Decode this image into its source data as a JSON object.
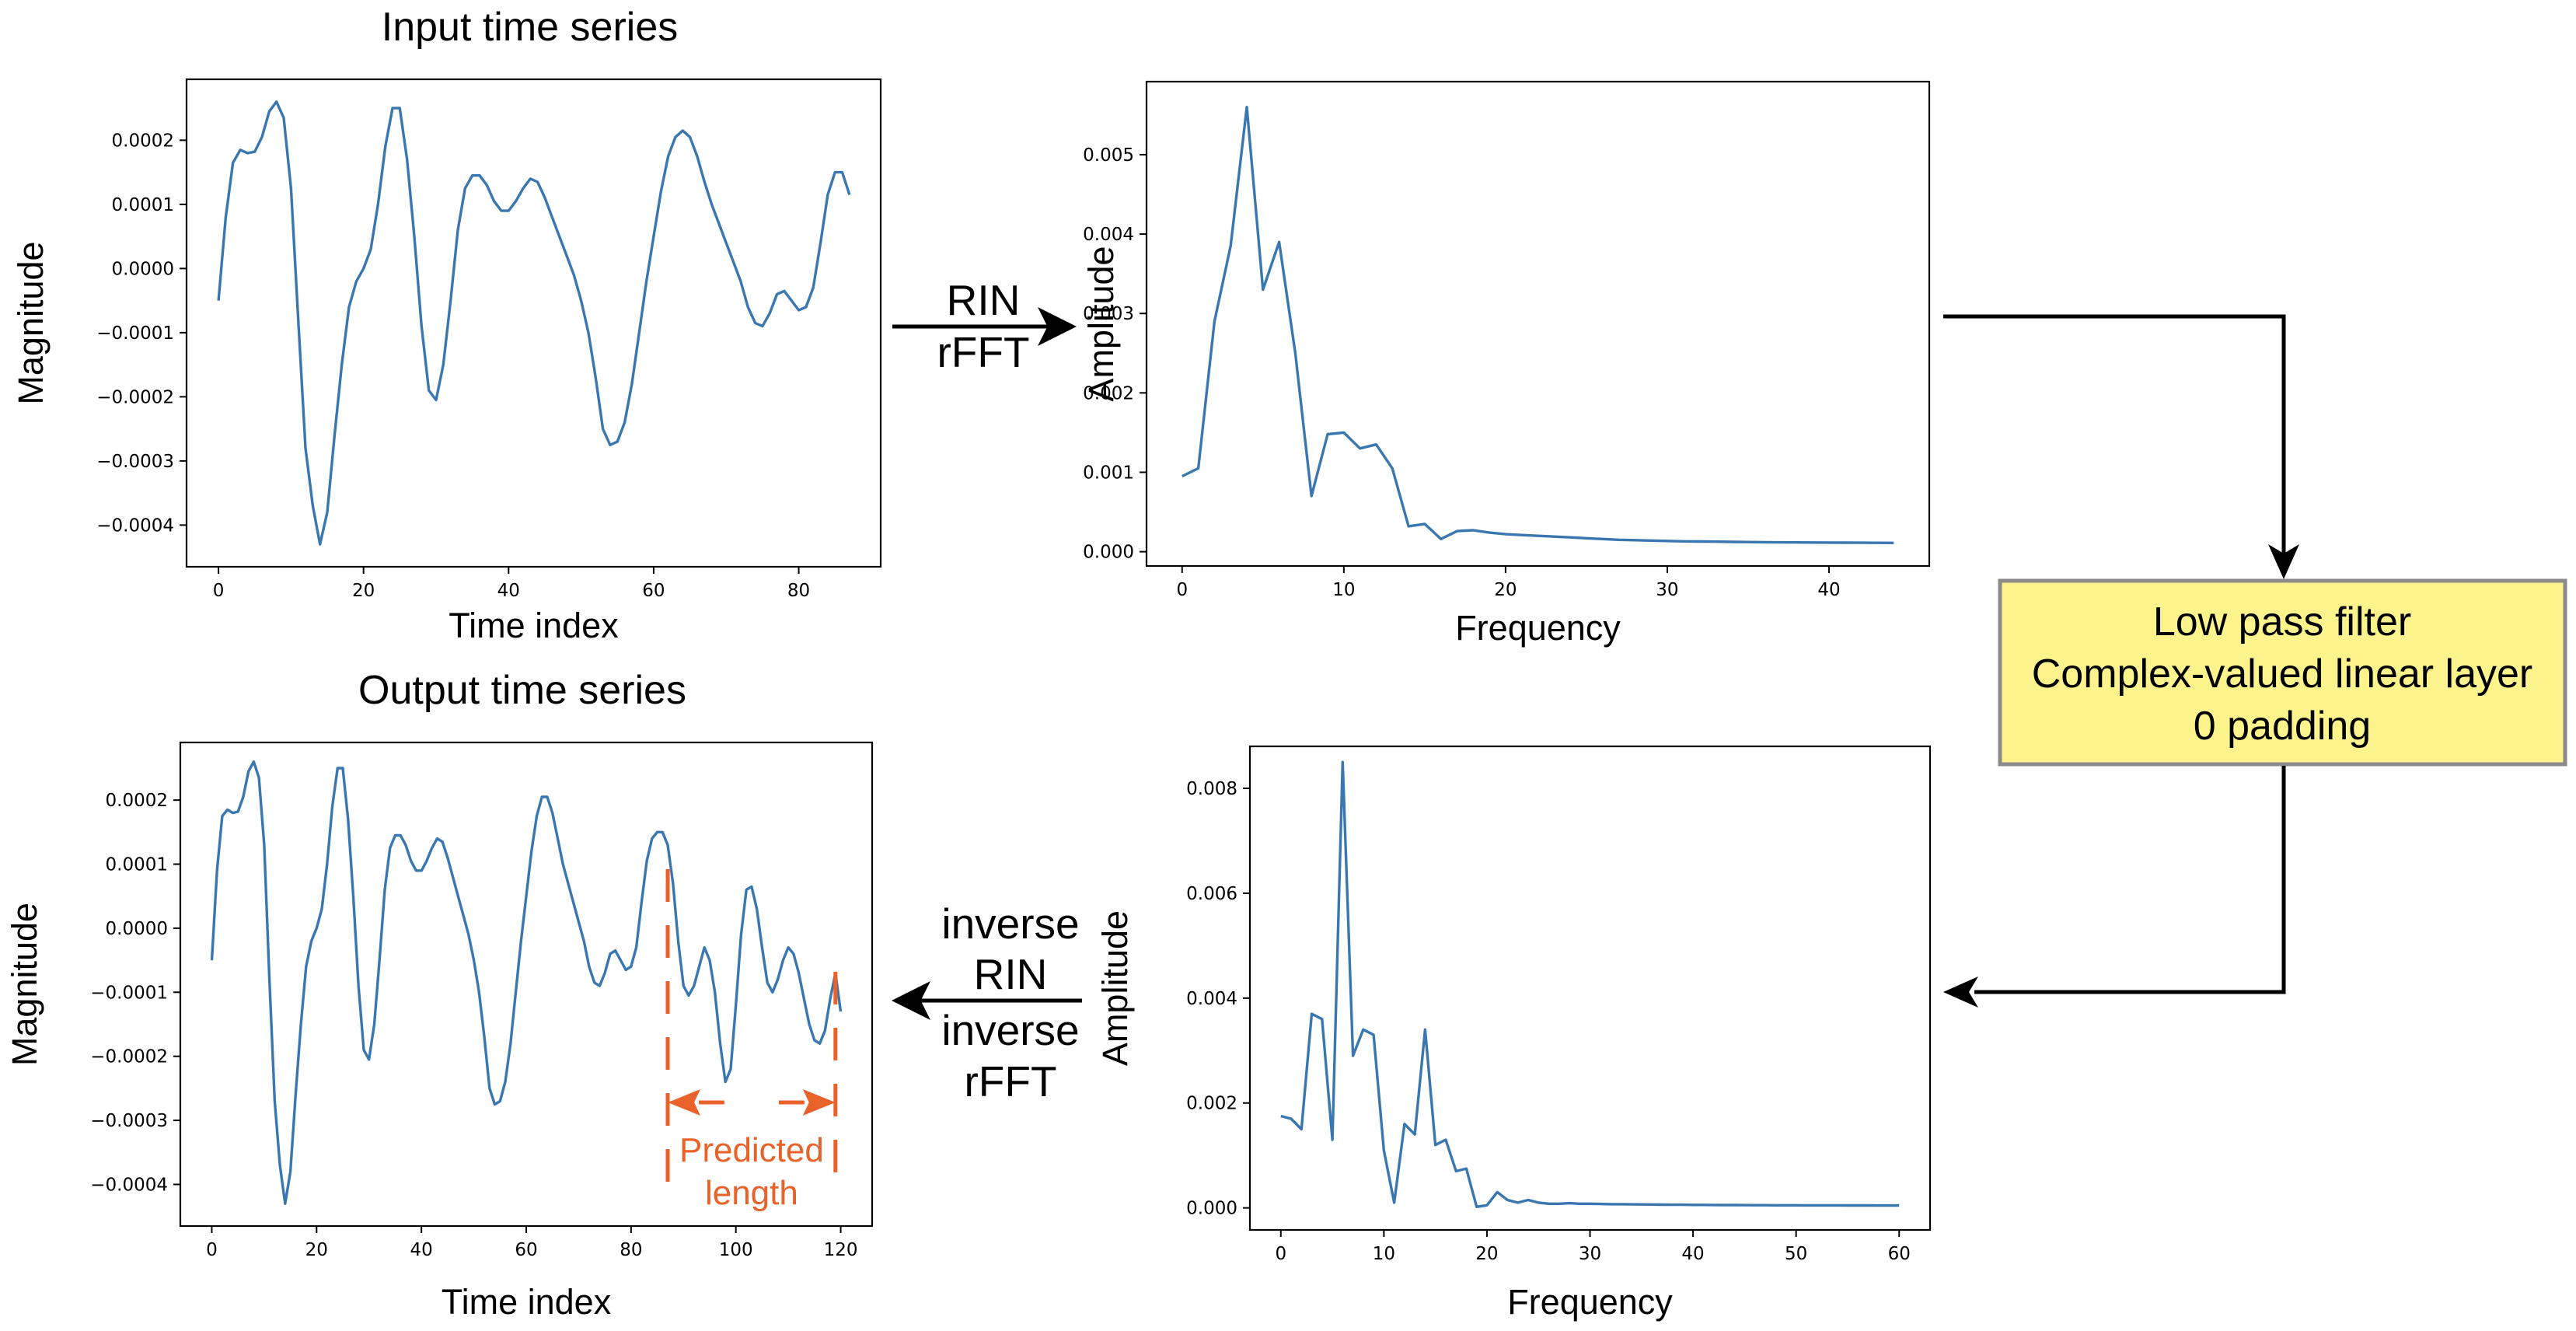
{
  "flow": {
    "forward_label_1": "RIN",
    "forward_label_2": "rFFT",
    "inverse_label_1": "inverse",
    "inverse_label_2": "RIN",
    "inverse_label_3": "inverse",
    "inverse_label_4": "rFFT",
    "filter_box": {
      "line1": "Low pass filter",
      "line2": "Complex-valued linear layer",
      "line3": "0 padding",
      "fill": "#fdf38d",
      "border": "#8a8a8a"
    },
    "predicted_label_1": "Predicted",
    "predicted_label_2": "length",
    "predicted_color": "#e8622a"
  },
  "chart_data": [
    {
      "id": "input",
      "type": "line",
      "title": "Input time series",
      "xlabel": "Time index",
      "ylabel": "Magnitude",
      "xlim": [
        -4.4,
        91.3
      ],
      "ylim": [
        -0.000465,
        0.000295
      ],
      "xticks": [
        0,
        20,
        40,
        60,
        80
      ],
      "xtick_labels": [
        "0",
        "20",
        "40",
        "60",
        "80"
      ],
      "yticks": [
        0.0002,
        0.0001,
        0.0,
        -0.0001,
        -0.0002,
        -0.0003,
        -0.0004
      ],
      "ytick_labels": [
        "0.0002",
        "0.0001",
        "0.0000",
        "−0.0001",
        "−0.0002",
        "−0.0003",
        "−0.0004"
      ],
      "line_color": "#3a77b0",
      "x_step": 1,
      "values": [
        -5e-05,
        8e-05,
        0.000165,
        0.000185,
        0.00018,
        0.000182,
        0.000205,
        0.000245,
        0.00026,
        0.000235,
        0.000125,
        -8e-05,
        -0.00028,
        -0.00037,
        -0.00043,
        -0.00038,
        -0.00026,
        -0.00015,
        -6e-05,
        -2e-05,
        0.0,
        3e-05,
        0.0001,
        0.00019,
        0.00025,
        0.00025,
        0.00017,
        5e-05,
        -9e-05,
        -0.00019,
        -0.000205,
        -0.00015,
        -5e-05,
        6e-05,
        0.000125,
        0.000145,
        0.000145,
        0.00013,
        0.000105,
        9e-05,
        9e-05,
        0.000105,
        0.000125,
        0.00014,
        0.000135,
        0.00011,
        8e-05,
        5e-05,
        2e-05,
        -1e-05,
        -5e-05,
        -0.0001,
        -0.00017,
        -0.00025,
        -0.000275,
        -0.00027,
        -0.00024,
        -0.00018,
        -0.0001,
        -2e-05,
        5e-05,
        0.00012,
        0.000175,
        0.000205,
        0.000215,
        0.000205,
        0.000175,
        0.000135,
        0.0001,
        7e-05,
        4e-05,
        1e-05,
        -2e-05,
        -6e-05,
        -8.5e-05,
        -9e-05,
        -7e-05,
        -4e-05,
        -3.5e-05,
        -5e-05,
        -6.5e-05,
        -6e-05,
        -3e-05,
        4e-05,
        0.000115,
        0.00015,
        0.00015,
        0.000115
      ]
    },
    {
      "id": "spectrum-input",
      "type": "line",
      "title": "",
      "xlabel": "Frequency",
      "ylabel": "Amplitude",
      "xlim": [
        -2.2,
        46.2
      ],
      "ylim": [
        -0.00018,
        0.00592
      ],
      "xticks": [
        0,
        10,
        20,
        30,
        40
      ],
      "xtick_labels": [
        "0",
        "10",
        "20",
        "30",
        "40"
      ],
      "yticks": [
        0.005,
        0.004,
        0.003,
        0.002,
        0.001,
        0.0
      ],
      "ytick_labels": [
        "0.005",
        "0.004",
        "0.003",
        "0.002",
        "0.001",
        "0.000"
      ],
      "line_color": "#3a77b0",
      "x_step": 1,
      "values": [
        0.00095,
        0.00105,
        0.0029,
        0.00385,
        0.0056,
        0.0033,
        0.0039,
        0.0025,
        0.0007,
        0.00148,
        0.0015,
        0.0013,
        0.00135,
        0.00105,
        0.00032,
        0.00035,
        0.00016,
        0.00026,
        0.00027,
        0.00024,
        0.00022,
        0.00021,
        0.0002,
        0.00019,
        0.00018,
        0.00017,
        0.00016,
        0.00015,
        0.000145,
        0.00014,
        0.000135,
        0.00013,
        0.000128,
        0.000126,
        0.000124,
        0.000122,
        0.00012,
        0.000118,
        0.000117,
        0.000116,
        0.000115,
        0.000114,
        0.000113,
        0.000112,
        0.000111
      ]
    },
    {
      "id": "output",
      "type": "line",
      "title": "Output time series",
      "xlabel": "Time index",
      "ylabel": "Magnitude",
      "xlim": [
        -6.0,
        126.0
      ],
      "ylim": [
        -0.000465,
        0.00029
      ],
      "xticks": [
        0,
        20,
        40,
        60,
        80,
        100,
        120
      ],
      "xtick_labels": [
        "0",
        "20",
        "40",
        "60",
        "80",
        "100",
        "120"
      ],
      "yticks": [
        0.0002,
        0.0001,
        0.0,
        -0.0001,
        -0.0002,
        -0.0003,
        -0.0004
      ],
      "ytick_labels": [
        "0.0002",
        "0.0001",
        "0.0000",
        "−0.0001",
        "−0.0002",
        "−0.0003",
        "−0.0004"
      ],
      "line_color": "#3a77b0",
      "x_step": 1,
      "predicted_range": [
        87,
        119
      ],
      "values": [
        -5e-05,
        9e-05,
        0.000175,
        0.000185,
        0.00018,
        0.000182,
        0.000205,
        0.000245,
        0.00026,
        0.000235,
        0.00013,
        -8e-05,
        -0.00027,
        -0.00037,
        -0.00043,
        -0.00038,
        -0.00026,
        -0.00015,
        -6e-05,
        -2e-05,
        0.0,
        3e-05,
        0.0001,
        0.00019,
        0.00025,
        0.00025,
        0.00017,
        5e-05,
        -9e-05,
        -0.00019,
        -0.000205,
        -0.00015,
        -5e-05,
        6e-05,
        0.000125,
        0.000145,
        0.000145,
        0.00013,
        0.000105,
        9e-05,
        9e-05,
        0.000105,
        0.000125,
        0.00014,
        0.000135,
        0.00011,
        8e-05,
        5e-05,
        2e-05,
        -1e-05,
        -5e-05,
        -0.0001,
        -0.00017,
        -0.00025,
        -0.000275,
        -0.00027,
        -0.00024,
        -0.00018,
        -0.0001,
        -2e-05,
        5e-05,
        0.00012,
        0.000175,
        0.000205,
        0.000205,
        0.00018,
        0.00014,
        0.0001,
        7e-05,
        4e-05,
        1e-05,
        -2e-05,
        -6e-05,
        -8.5e-05,
        -9e-05,
        -7e-05,
        -4e-05,
        -3.5e-05,
        -5e-05,
        -6.5e-05,
        -6e-05,
        -3e-05,
        4e-05,
        0.000105,
        0.00014,
        0.00015,
        0.00015,
        0.00013,
        7e-05,
        -2e-05,
        -9e-05,
        -0.000105,
        -9e-05,
        -6e-05,
        -3e-05,
        -5e-05,
        -0.0001,
        -0.00018,
        -0.00024,
        -0.00022,
        -0.00012,
        -1e-05,
        6e-05,
        6.5e-05,
        3e-05,
        -3e-05,
        -8.5e-05,
        -0.0001,
        -8e-05,
        -5e-05,
        -3e-05,
        -4e-05,
        -7e-05,
        -0.00011,
        -0.00015,
        -0.000175,
        -0.00018,
        -0.00016,
        -0.00011,
        -7e-05,
        -0.00013
      ]
    },
    {
      "id": "spectrum-output",
      "type": "line",
      "title": "",
      "xlabel": "Frequency",
      "ylabel": "Amplitude",
      "xlim": [
        -3.0,
        63.0
      ],
      "ylim": [
        -0.00042,
        0.0088
      ],
      "xticks": [
        0,
        10,
        20,
        30,
        40,
        50,
        60
      ],
      "xtick_labels": [
        "0",
        "10",
        "20",
        "30",
        "40",
        "50",
        "60"
      ],
      "yticks": [
        0.008,
        0.006,
        0.004,
        0.002,
        0.0
      ],
      "ytick_labels": [
        "0.008",
        "0.006",
        "0.004",
        "0.002",
        "0.000"
      ],
      "line_color": "#3a77b0",
      "x_step": 1,
      "values": [
        0.00175,
        0.0017,
        0.0015,
        0.0037,
        0.0036,
        0.0013,
        0.0085,
        0.0029,
        0.0034,
        0.0033,
        0.0011,
        0.0001,
        0.0016,
        0.0014,
        0.0034,
        0.0012,
        0.0013,
        0.0007,
        0.00075,
        2e-05,
        5e-05,
        0.0003,
        0.00015,
        0.0001,
        0.00015,
        0.0001,
        8e-05,
        8e-05,
        9e-05,
        8e-05,
        8e-05,
        7.5e-05,
        7e-05,
        7e-05,
        6.8e-05,
        6.6e-05,
        6.4e-05,
        6.2e-05,
        6e-05,
        6e-05,
        5.8e-05,
        5.7e-05,
        5.6e-05,
        5.5e-05,
        5.4e-05,
        5.3e-05,
        5.2e-05,
        5.1e-05,
        5e-05,
        5e-05,
        5e-05,
        4.9e-05,
        4.9e-05,
        4.8e-05,
        4.8e-05,
        4.7e-05,
        4.7e-05,
        4.7e-05,
        4.6e-05,
        4.6e-05,
        4.6e-05
      ]
    }
  ]
}
